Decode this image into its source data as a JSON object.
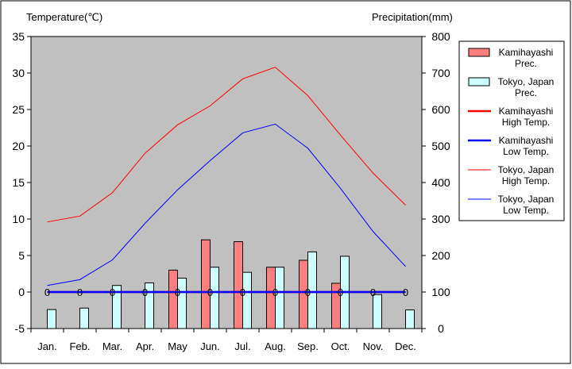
{
  "chart_data": {
    "type": "bar+line",
    "categories": [
      "Jan.",
      "Feb.",
      "Mar.",
      "Apr.",
      "May",
      "Jun.",
      "Jul.",
      "Aug.",
      "Sep.",
      "Oct.",
      "Nov.",
      "Dec."
    ],
    "y_left": {
      "label": "Temperature(℃)",
      "min": -5,
      "max": 35,
      "ticks": [
        35,
        30,
        25,
        20,
        15,
        10,
        5,
        0,
        -5
      ]
    },
    "y_right": {
      "label": "Precipitation(mm)",
      "min": 0,
      "max": 800,
      "ticks": [
        800,
        700,
        600,
        500,
        400,
        300,
        200,
        100,
        0
      ]
    },
    "bar_series": [
      {
        "name_line1": "Kamihayashi",
        "name_line2": "Prec.",
        "axis": "right",
        "color": "#ff7f7f",
        "values": [
          0,
          0,
          0,
          0,
          160,
          243,
          238,
          168,
          187,
          124,
          0,
          0
        ]
      },
      {
        "name_line1": "Tokyo, Japan",
        "name_line2": "Prec.",
        "axis": "right",
        "color": "#ccffff",
        "values": [
          52,
          56,
          118,
          125,
          138,
          168,
          154,
          168,
          210,
          198,
          93,
          51
        ]
      }
    ],
    "line_series": [
      {
        "name_line1": "Kamihayashi",
        "name_line2": "High Temp.",
        "axis": "left",
        "color": "#ff0000",
        "width": 2.5,
        "values": [
          0,
          0,
          0,
          0,
          0,
          0,
          0,
          0,
          0,
          0,
          0,
          0
        ]
      },
      {
        "name_line1": "Kamihayashi",
        "name_line2": "Low Temp.",
        "axis": "left",
        "color": "#0000ff",
        "width": 2.5,
        "values": [
          0,
          0,
          0,
          0,
          0,
          0,
          0,
          0,
          0,
          0,
          0,
          0
        ]
      },
      {
        "name_line1": "Tokyo, Japan",
        "name_line2": "High Temp.",
        "axis": "left",
        "color": "#ff0000",
        "width": 1,
        "values": [
          9.6,
          10.4,
          13.6,
          19.0,
          22.9,
          25.5,
          29.2,
          30.8,
          26.9,
          21.5,
          16.3,
          11.9
        ]
      },
      {
        "name_line1": "Tokyo, Japan",
        "name_line2": "Low Temp.",
        "axis": "left",
        "color": "#0000ff",
        "width": 1,
        "values": [
          0.9,
          1.7,
          4.4,
          9.4,
          14.0,
          18.0,
          21.8,
          23.0,
          19.7,
          14.2,
          8.3,
          3.5
        ]
      }
    ],
    "zero_markers": [
      "0",
      "0",
      "0",
      "0",
      "0",
      "0",
      "0",
      "0",
      "0",
      "0",
      "0",
      "0"
    ],
    "plot_background": "#c0c0c0",
    "legend_position": "right",
    "grid": false
  }
}
